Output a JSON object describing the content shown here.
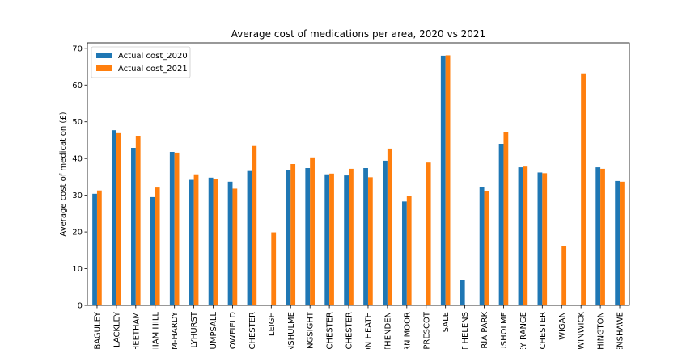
{
  "chart_data": {
    "type": "bar",
    "title": "Average cost of medications per area, 2020 vs 2021",
    "xlabel": "",
    "ylabel": "Average cost of medication (£)",
    "ylim": [
      0,
      71.5
    ],
    "yticks": [
      0,
      10,
      20,
      30,
      40,
      50,
      60,
      70
    ],
    "grid": false,
    "legend_position": "top-left",
    "categories": [
      "BAGULEY",
      "LACKLEY",
      "HEETHAM",
      "HAM HILL",
      "M-HARDY",
      "LYHURST",
      "UMPSALL",
      "OWFIELD",
      "CHESTER",
      "LEIGH",
      "NSHULME",
      "NGSIGHT",
      "CHESTER",
      "CHESTER",
      "ON HEATH",
      "THENDEN",
      "RN MOOR",
      "PRESCOT",
      "SALE",
      "T HELENS",
      "RIA PARK",
      "USHOLME",
      "EY RANGE",
      "CHESTER",
      "WIGAN",
      "WINWICK",
      "HINGTON",
      "ENSHAWE"
    ],
    "series": [
      {
        "name": "Actual cost_2020",
        "color": "#1f77b4",
        "values": [
          30.4,
          47.7,
          42.9,
          29.5,
          41.8,
          34.2,
          34.8,
          33.7,
          36.6,
          null,
          36.8,
          37.4,
          35.7,
          35.4,
          37.4,
          39.4,
          28.3,
          null,
          68.0,
          7.0,
          32.2,
          44.0,
          37.6,
          36.2,
          null,
          null,
          37.6,
          33.9
        ]
      },
      {
        "name": "Actual cost_2021",
        "color": "#ff7f0e",
        "values": [
          31.3,
          46.9,
          46.2,
          32.1,
          41.6,
          35.7,
          34.4,
          31.8,
          43.4,
          19.9,
          38.5,
          40.3,
          35.9,
          37.2,
          34.9,
          42.7,
          29.8,
          38.9,
          68.1,
          null,
          31.1,
          47.1,
          37.8,
          36.0,
          16.2,
          63.2,
          37.2,
          33.7
        ]
      }
    ]
  }
}
